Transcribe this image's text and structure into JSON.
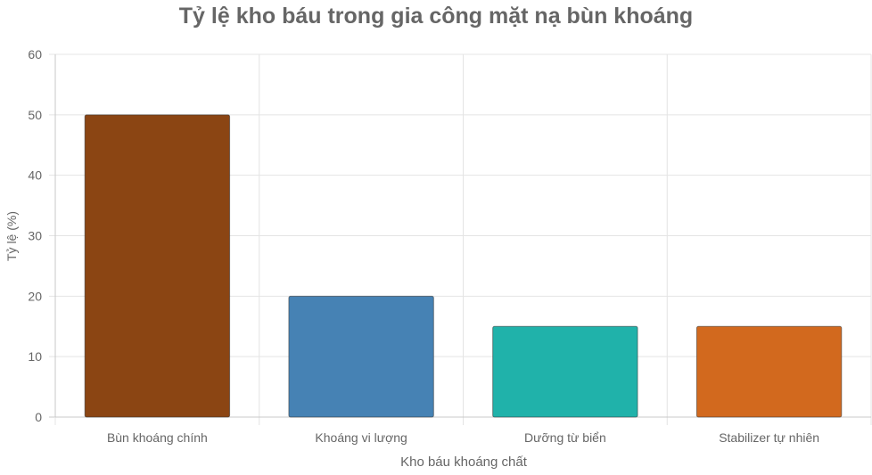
{
  "chart_data": {
    "type": "bar",
    "title": "Tỷ lệ kho báu trong gia công mặt nạ bùn khoáng",
    "xlabel": "Kho báu khoáng chất",
    "ylabel": "Tỷ lệ (%)",
    "categories": [
      "Bùn khoáng chính",
      "Khoáng vi lượng",
      "Dưỡng từ biển",
      "Stabilizer tự nhiên"
    ],
    "values": [
      50,
      20,
      15,
      15
    ],
    "colors": [
      "#8B4513",
      "#4682B4",
      "#20B2AA",
      "#D2691E"
    ],
    "ylim": [
      0,
      60
    ],
    "yticks": [
      "0",
      "10",
      "20",
      "30",
      "40",
      "50",
      "60"
    ],
    "grid": true,
    "legend": "none"
  }
}
